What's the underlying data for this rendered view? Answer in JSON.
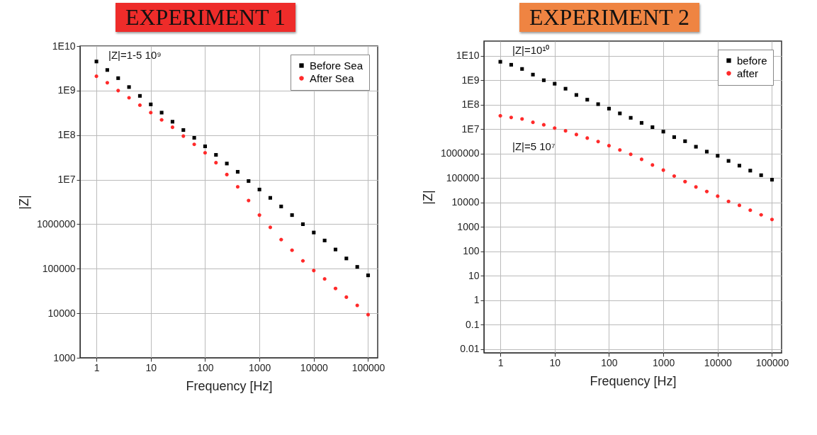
{
  "chart_data": [
    {
      "type": "scatter",
      "title": "EXPERIMENT 1",
      "xlabel": "Frequency [Hz]",
      "ylabel": "|Z|",
      "log": "xy",
      "grid": true,
      "legend": "top right",
      "annotations": [
        "|Z|=1-5 10⁹"
      ],
      "xlim": [
        0.5,
        150000
      ],
      "xticks": [
        1,
        10,
        100,
        1000,
        10000,
        100000
      ],
      "ylim": [
        1000,
        10000000000.0
      ],
      "yticks": [
        1000,
        10000,
        100000,
        1000000,
        {
          "value": 10000000.0,
          "label": "1E7"
        },
        {
          "value": 100000000.0,
          "label": "1E8"
        },
        {
          "value": 1000000000.0,
          "label": "1E9"
        },
        {
          "value": 10000000000.0,
          "label": "1E10"
        }
      ],
      "x": [
        1,
        1.585,
        2.512,
        3.981,
        6.31,
        10,
        15.85,
        25.12,
        39.81,
        63.1,
        100,
        158.5,
        251.2,
        398.1,
        631,
        1000,
        1585,
        2512,
        3981,
        6310,
        10000,
        15850,
        25120,
        39810,
        63100,
        100000
      ],
      "series": [
        {
          "name": "Before Sea",
          "color": "#000000",
          "marker": "square",
          "values": [
            4500000000.0,
            2900000000.0,
            1900000000.0,
            1200000000.0,
            760000000.0,
            490000000.0,
            320000000.0,
            200000000.0,
            130000000.0,
            87000000.0,
            56000000.0,
            36000000.0,
            23000000.0,
            15000000.0,
            9300000.0,
            6000000.0,
            3900000.0,
            2500000.0,
            1600000.0,
            1000000.0,
            650000.0,
            430000.0,
            270000.0,
            170000.0,
            110000.0,
            71000.0
          ]
        },
        {
          "name": "After Sea",
          "color": "#ff2a2a",
          "marker": "circle",
          "values": [
            2100000000.0,
            1500000000.0,
            1000000000.0,
            690000000.0,
            470000000.0,
            320000000.0,
            220000000.0,
            150000000.0,
            95000000.0,
            62000000.0,
            40000000.0,
            24000000.0,
            13000000.0,
            6900000.0,
            3400000.0,
            1600000.0,
            850000.0,
            450000.0,
            260000.0,
            150000.0,
            91000.0,
            59000.0,
            36000.0,
            23000.0,
            15000.0,
            9300.0
          ]
        }
      ]
    },
    {
      "type": "scatter",
      "title": "EXPERIMENT 2",
      "xlabel": "Frequency [Hz]",
      "ylabel": "|Z|",
      "log": "xy",
      "grid": true,
      "legend": "top right",
      "annotations": [
        "|Z|=10¹⁰",
        "|Z|=5 10⁷"
      ],
      "xlim": [
        0.5,
        150000
      ],
      "xticks": [
        1,
        10,
        100,
        1000,
        10000,
        100000
      ],
      "ylim": [
        0.007,
        40000000000.0
      ],
      "yticks": [
        0.01,
        0.1,
        1,
        10,
        100,
        1000,
        10000,
        100000,
        1000000,
        {
          "value": 10000000.0,
          "label": "1E7"
        },
        {
          "value": 100000000.0,
          "label": "1E8"
        },
        {
          "value": 1000000000.0,
          "label": "1E9"
        },
        {
          "value": 10000000000.0,
          "label": "1E10"
        }
      ],
      "x": [
        1,
        1.585,
        2.512,
        3.981,
        6.31,
        10,
        15.85,
        25.12,
        39.81,
        63.1,
        100,
        158.5,
        251.2,
        398.1,
        631,
        1000,
        1585,
        2512,
        3981,
        6310,
        10000,
        15850,
        25120,
        39810,
        63100,
        100000
      ],
      "series": [
        {
          "name": "before",
          "color": "#000000",
          "marker": "square",
          "values": [
            5700000000.0,
            4300000000.0,
            2900000000.0,
            1700000000.0,
            1000000000.0,
            720000000.0,
            450000000.0,
            250000000.0,
            160000000.0,
            105000000.0,
            69000000.0,
            44000000.0,
            29000000.0,
            18000000.0,
            12000000.0,
            7900000.0,
            4700000.0,
            3200000.0,
            1900000.0,
            1200000.0,
            810000.0,
            500000.0,
            320000.0,
            200000.0,
            130000.0,
            85000.0
          ]
        },
        {
          "name": "after",
          "color": "#ff2a2a",
          "marker": "circle",
          "values": [
            35000000.0,
            30000000.0,
            26000000.0,
            19000000.0,
            15000000.0,
            11000000.0,
            8500000.0,
            6000000.0,
            4300000.0,
            3100000.0,
            2100000.0,
            1400000.0,
            930000.0,
            580000.0,
            340000.0,
            210000.0,
            120000.0,
            71000.0,
            43000.0,
            28000.0,
            18000.0,
            11000.0,
            7600.0,
            4800.0,
            3100.0,
            2000.0
          ]
        }
      ]
    }
  ]
}
